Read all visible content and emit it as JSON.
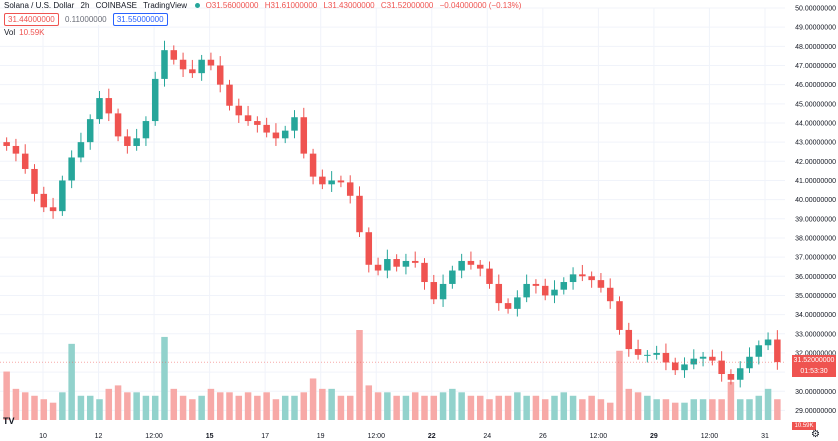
{
  "header": {
    "symbol": "Solana / U.S. Dollar",
    "interval": "2h",
    "exchange": "COINBASE",
    "source": "TradingView",
    "status_dot_color": "#26a69a",
    "open": "O31.56000000",
    "high": "H31.61000000",
    "low": "L31.43000000",
    "close": "C31.52000000",
    "change": "−0.04000000 (−0.13%)",
    "bid": "31.44000000",
    "spread": "0.11000000",
    "ask": "31.55000000",
    "vol_label": "Vol",
    "vol_value": "10.59K"
  },
  "price_tag": "31.52000000",
  "price_tag_sub": "01:53:30",
  "vol_tag": "10.59K",
  "logo": "TV",
  "settings_icon": "gear-icon",
  "colors": {
    "up": "#26a69a",
    "down": "#ef5350",
    "up_vol": "#92d2cc",
    "down_vol": "#f7a9a7",
    "grid": "#f0f3fa"
  },
  "chart_data": {
    "type": "candlestick",
    "ylim": [
      28.5,
      50
    ],
    "y_ticks": [
      "50.00000000",
      "49.00000000",
      "48.00000000",
      "47.00000000",
      "46.00000000",
      "45.00000000",
      "44.00000000",
      "43.00000000",
      "42.00000000",
      "41.00000000",
      "40.00000000",
      "39.00000000",
      "38.00000000",
      "37.00000000",
      "36.00000000",
      "35.00000000",
      "34.00000000",
      "33.00000000",
      "32.00000000",
      "31.00000000",
      "30.00000000",
      "29.00000000"
    ],
    "x_ticks": [
      {
        "label": "10",
        "bold": false
      },
      {
        "label": "12",
        "bold": false
      },
      {
        "label": "12:00",
        "bold": false
      },
      {
        "label": "15",
        "bold": true
      },
      {
        "label": "17",
        "bold": false
      },
      {
        "label": "19",
        "bold": false
      },
      {
        "label": "12:00",
        "bold": false
      },
      {
        "label": "22",
        "bold": true
      },
      {
        "label": "24",
        "bold": false
      },
      {
        "label": "26",
        "bold": false
      },
      {
        "label": "12:00",
        "bold": false
      },
      {
        "label": "29",
        "bold": true
      },
      {
        "label": "12:00",
        "bold": false
      },
      {
        "label": "31",
        "bold": false
      }
    ],
    "last_close": 31.52,
    "close_path": [
      42.8,
      42.4,
      41.6,
      40.3,
      39.6,
      39.4,
      41.0,
      42.2,
      43.0,
      44.2,
      45.3,
      44.5,
      43.3,
      42.8,
      43.2,
      44.1,
      46.3,
      47.8,
      47.3,
      46.8,
      46.6,
      47.3,
      47.0,
      46.0,
      44.9,
      44.4,
      44.1,
      43.9,
      43.5,
      43.2,
      43.6,
      44.3,
      42.4,
      41.2,
      40.8,
      41.0,
      40.9,
      40.2,
      38.3,
      36.6,
      36.3,
      36.9,
      36.5,
      36.8,
      36.7,
      35.7,
      34.8,
      35.6,
      36.3,
      36.8,
      36.6,
      36.4,
      35.6,
      34.6,
      34.3,
      34.9,
      35.6,
      35.5,
      35.0,
      35.3,
      35.7,
      36.1,
      36.0,
      35.8,
      35.4,
      34.7,
      33.2,
      32.2,
      31.9,
      31.9,
      32.0,
      31.5,
      31.1,
      31.4,
      31.7,
      31.8,
      31.6,
      30.9,
      30.6,
      31.2,
      31.8,
      32.4,
      32.7,
      31.52
    ],
    "volume": [
      14,
      9,
      8,
      7,
      6,
      5,
      8,
      22,
      7,
      7,
      6,
      9,
      10,
      8,
      8,
      7,
      7,
      24,
      9,
      7,
      6,
      7,
      9,
      8,
      8,
      7,
      8,
      7,
      8,
      6,
      7,
      7,
      8,
      12,
      9,
      9,
      7,
      7,
      26,
      10,
      8,
      8,
      7,
      7,
      8,
      7,
      7,
      8,
      9,
      8,
      7,
      7,
      6,
      7,
      7,
      8,
      7,
      7,
      6,
      7,
      8,
      7,
      6,
      7,
      6,
      5,
      20,
      9,
      8,
      7,
      6,
      6,
      5,
      5,
      6,
      6,
      6,
      6,
      11,
      6,
      6,
      7,
      9,
      6
    ]
  }
}
